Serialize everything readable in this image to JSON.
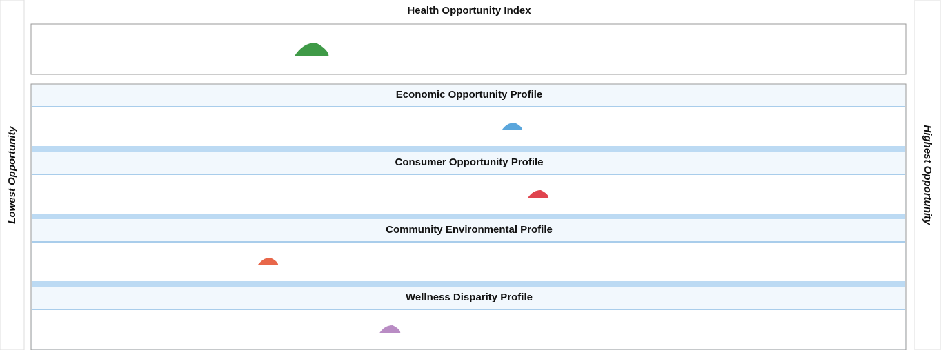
{
  "chart_data": {
    "type": "strip",
    "categories": [
      "Health Opportunity Index",
      "Economic Opportunity Profile",
      "Consumer Opportunity Profile",
      "Community Environmental Profile",
      "Wellness Disparity Profile"
    ],
    "values": [
      32,
      55,
      58,
      27,
      41
    ],
    "colors": [
      "#3f9a47",
      "#5aa6dc",
      "#e0444e",
      "#e8674a",
      "#b98cc4"
    ],
    "xlim": [
      0,
      100
    ],
    "xlabel_left": "Lowest Opportunity",
    "xlabel_right": "Highest Opportunity"
  }
}
